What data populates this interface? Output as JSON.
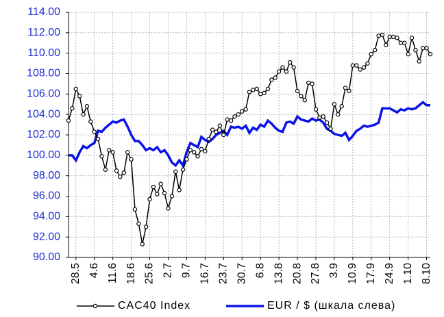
{
  "chart_data": {
    "type": "line",
    "categories": [
      null,
      null,
      "28.5",
      null,
      null,
      null,
      null,
      "4.6",
      null,
      null,
      null,
      null,
      "11.6",
      null,
      null,
      null,
      null,
      "18.6",
      null,
      null,
      null,
      null,
      "25.6",
      null,
      null,
      null,
      null,
      "2.7",
      null,
      null,
      null,
      null,
      "9.7",
      null,
      null,
      null,
      null,
      "16.7",
      null,
      null,
      null,
      null,
      "23.7",
      null,
      null,
      null,
      null,
      "30.7",
      null,
      null,
      null,
      null,
      "6.8",
      null,
      null,
      null,
      null,
      "13.8",
      null,
      null,
      null,
      null,
      "20.8",
      null,
      null,
      null,
      null,
      "27.8",
      null,
      null,
      null,
      null,
      "3.9",
      null,
      null,
      null,
      null,
      "10.9",
      null,
      null,
      null,
      null,
      "17.9",
      null,
      null,
      null,
      null,
      "24.9",
      null,
      null,
      null,
      null,
      "1.10",
      null,
      null,
      null,
      null,
      "8.10",
      null
    ],
    "series": [
      {
        "name": "CAC40 Index",
        "color": "#000000",
        "markers": true,
        "values": [
          103.4,
          104.6,
          106.5,
          105.8,
          104.0,
          104.8,
          103.3,
          102.3,
          101.6,
          99.9,
          98.6,
          100.5,
          100.3,
          98.5,
          97.9,
          98.3,
          100.3,
          99.6,
          94.7,
          93.3,
          91.3,
          93.0,
          95.7,
          96.9,
          96.2,
          97.2,
          96.3,
          94.8,
          96.0,
          98.4,
          96.6,
          98.6,
          99.6,
          100.5,
          100.3,
          99.9,
          100.6,
          100.4,
          101.6,
          102.5,
          102.3,
          102.9,
          102.0,
          103.5,
          103.4,
          103.8,
          104.0,
          104.3,
          104.5,
          106.2,
          106.4,
          106.5,
          106.0,
          106.1,
          106.5,
          107.4,
          107.6,
          108.2,
          108.6,
          108.2,
          109.1,
          108.6,
          106.3,
          105.8,
          105.4,
          107.1,
          107.0,
          104.5,
          103.7,
          103.8,
          103.2,
          102.6,
          105.0,
          104.0,
          104.8,
          106.6,
          106.3,
          108.8,
          108.8,
          108.4,
          108.6,
          109.0,
          109.9,
          110.3,
          111.7,
          111.8,
          110.8,
          111.6,
          111.6,
          111.5,
          111.0,
          111.0,
          109.9,
          111.5,
          110.3,
          109.2,
          110.5,
          110.5,
          109.9
        ]
      },
      {
        "name": "EUR / $ (шкала слева)",
        "color": "#0a14e6",
        "markers": false,
        "values": [
          100.0,
          100.0,
          99.5,
          100.3,
          100.9,
          100.7,
          101.0,
          101.2,
          102.4,
          102.3,
          102.7,
          103.0,
          103.3,
          103.2,
          103.4,
          103.5,
          102.8,
          102.0,
          101.4,
          101.4,
          101.0,
          100.5,
          100.7,
          100.5,
          100.8,
          100.3,
          100.5,
          100.0,
          99.3,
          99.0,
          99.5,
          99.0,
          100.3,
          101.2,
          101.0,
          100.8,
          101.8,
          101.5,
          101.3,
          101.6,
          102.0,
          102.2,
          102.4,
          102.0,
          102.8,
          102.7,
          102.8,
          102.6,
          102.9,
          102.2,
          102.7,
          102.5,
          103.0,
          102.8,
          103.4,
          103.1,
          102.7,
          102.4,
          102.3,
          103.2,
          103.3,
          103.1,
          103.8,
          103.5,
          103.4,
          103.3,
          103.6,
          103.4,
          103.5,
          103.2,
          102.6,
          102.4,
          102.1,
          102.0,
          101.9,
          102.2,
          101.5,
          101.9,
          102.4,
          102.6,
          102.9,
          102.8,
          102.9,
          103.0,
          103.2,
          104.6,
          104.6,
          104.6,
          104.4,
          104.2,
          104.5,
          104.4,
          104.6,
          104.5,
          104.6,
          104.9,
          105.2,
          104.9,
          104.9
        ]
      }
    ],
    "ylim": [
      90,
      114
    ],
    "yticks": [
      {
        "value": 90,
        "label": "90.00"
      },
      {
        "value": 92,
        "label": "92.00"
      },
      {
        "value": 94,
        "label": "94.00"
      },
      {
        "value": 96,
        "label": "96.00"
      },
      {
        "value": 98,
        "label": "98.00"
      },
      {
        "value": 100,
        "label": "100.00"
      },
      {
        "value": 102,
        "label": "102.00"
      },
      {
        "value": 104,
        "label": "104.00"
      },
      {
        "value": 106,
        "label": "106.00"
      },
      {
        "value": 108,
        "label": "108.00"
      },
      {
        "value": 110,
        "label": "110.00"
      },
      {
        "value": 112,
        "label": "112.00"
      },
      {
        "value": 114,
        "label": "114.00"
      }
    ],
    "grid": true,
    "legend": "bottom"
  }
}
